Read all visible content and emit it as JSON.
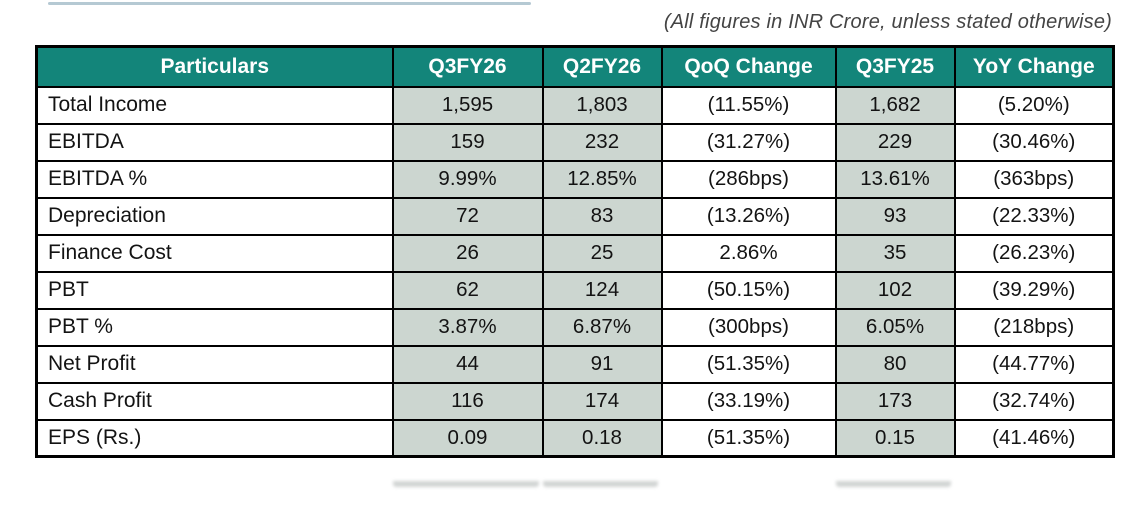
{
  "note": "(All figures in INR Crore, unless stated otherwise)",
  "colors": {
    "header_bg": "#13857a",
    "header_text": "#ffffff",
    "shaded_cell_bg": "#ccd6d0",
    "border": "#000000",
    "top_accent_line": "#b5c9d3",
    "note_text": "#444444",
    "body_text": "#131313"
  },
  "table": {
    "columns": [
      "Particulars",
      "Q3FY26",
      "Q2FY26",
      "QoQ Change",
      "Q3FY25",
      "YoY Change"
    ],
    "shaded_columns": [
      "Q3FY26",
      "Q2FY26",
      "Q3FY25"
    ],
    "rows": [
      {
        "label": "Total Income",
        "values": [
          "1,595",
          "1,803",
          "(11.55%)",
          "1,682",
          "(5.20%)"
        ]
      },
      {
        "label": "EBITDA",
        "values": [
          "159",
          "232",
          "(31.27%)",
          "229",
          "(30.46%)"
        ]
      },
      {
        "label": "EBITDA %",
        "values": [
          "9.99%",
          "12.85%",
          "(286bps)",
          "13.61%",
          "(363bps)"
        ]
      },
      {
        "label": "Depreciation",
        "values": [
          "72",
          "83",
          "(13.26%)",
          "93",
          "(22.33%)"
        ]
      },
      {
        "label": "Finance Cost",
        "values": [
          "26",
          "25",
          "2.86%",
          "35",
          "(26.23%)"
        ]
      },
      {
        "label": "PBT",
        "values": [
          "62",
          "124",
          "(50.15%)",
          "102",
          "(39.29%)"
        ]
      },
      {
        "label": "PBT %",
        "values": [
          "3.87%",
          "6.87%",
          "(300bps)",
          "6.05%",
          "(218bps)"
        ]
      },
      {
        "label": "Net Profit",
        "values": [
          "44",
          "91",
          "(51.35%)",
          "80",
          "(44.77%)"
        ]
      },
      {
        "label": "Cash Profit",
        "values": [
          "116",
          "174",
          "(33.19%)",
          "173",
          "(32.74%)"
        ]
      },
      {
        "label": "EPS (Rs.)",
        "values": [
          "0.09",
          "0.18",
          "(51.35%)",
          "0.15",
          "(41.46%)"
        ]
      }
    ]
  },
  "chart_data": {
    "type": "table",
    "columns": [
      "Particulars",
      "Q3FY26",
      "Q2FY26",
      "QoQ Change",
      "Q3FY25",
      "YoY Change"
    ],
    "rows": [
      [
        "Total Income",
        "1,595",
        "1,803",
        "(11.55%)",
        "1,682",
        "(5.20%)"
      ],
      [
        "EBITDA",
        "159",
        "232",
        "(31.27%)",
        "229",
        "(30.46%)"
      ],
      [
        "EBITDA %",
        "9.99%",
        "12.85%",
        "(286bps)",
        "13.61%",
        "(363bps)"
      ],
      [
        "Depreciation",
        "72",
        "83",
        "(13.26%)",
        "93",
        "(22.33%)"
      ],
      [
        "Finance Cost",
        "26",
        "25",
        "2.86%",
        "35",
        "(26.23%)"
      ],
      [
        "PBT",
        "62",
        "124",
        "(50.15%)",
        "102",
        "(39.29%)"
      ],
      [
        "PBT %",
        "3.87%",
        "6.87%",
        "(300bps)",
        "6.05%",
        "(218bps)"
      ],
      [
        "Net Profit",
        "44",
        "91",
        "(51.35%)",
        "80",
        "(44.77%)"
      ],
      [
        "Cash Profit",
        "116",
        "174",
        "(33.19%)",
        "173",
        "(32.74%)"
      ],
      [
        "EPS (Rs.)",
        "0.09",
        "0.18",
        "(51.35%)",
        "0.15",
        "(41.46%)"
      ]
    ]
  }
}
